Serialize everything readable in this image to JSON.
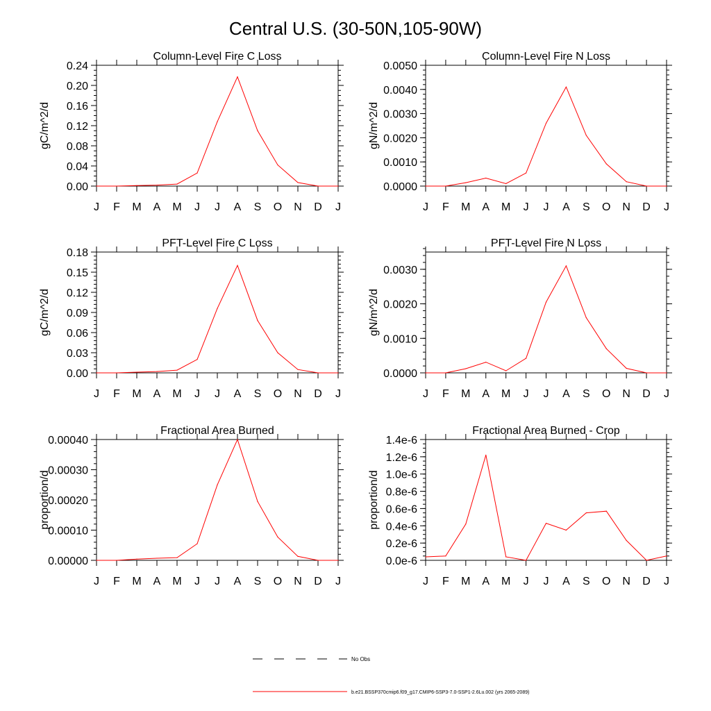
{
  "page_title": "Central U.S. (30-50N,105-90W)",
  "month_labels": [
    "J",
    "F",
    "M",
    "A",
    "M",
    "J",
    "J",
    "A",
    "S",
    "O",
    "N",
    "D",
    "J"
  ],
  "legend": {
    "obs_label": "No Obs",
    "model_label": "b.e21.BSSP370cmip6.f09_g17.CMIP6-SSP3-7.0-SSP1-2.6Lu.002 (yrs 2065-2089)",
    "obs_color": "#000000",
    "model_color": "#ff0000"
  },
  "chart_data": [
    {
      "type": "line",
      "title": "Column-Level Fire C Loss",
      "ylabel": "gC/m^2/d",
      "ylim": [
        0,
        0.24
      ],
      "yticks": [
        "0.00",
        "0.04",
        "0.08",
        "0.12",
        "0.16",
        "0.20",
        "0.24"
      ],
      "yminor_step": 0.01,
      "series": [
        {
          "values": [
            0.0,
            0.0,
            0.001,
            0.002,
            0.004,
            0.026,
            0.128,
            0.217,
            0.11,
            0.042,
            0.007,
            0.0,
            0.0
          ]
        }
      ]
    },
    {
      "type": "line",
      "title": "Column-Level Fire N Loss",
      "ylabel": "gN/m^2/d",
      "ylim": [
        0,
        0.005
      ],
      "yticks": [
        "0.0000",
        "0.0010",
        "0.0020",
        "0.0030",
        "0.0040",
        "0.0050"
      ],
      "yminor_step": 0.0002,
      "series": [
        {
          "values": [
            0.0,
            0.0,
            0.00014,
            0.00033,
            0.0001,
            0.00054,
            0.0026,
            0.0041,
            0.0021,
            0.00092,
            0.00018,
            0.0,
            0.0
          ]
        }
      ]
    },
    {
      "type": "line",
      "title": "PFT-Level Fire C Loss",
      "ylabel": "gC/m^2/d",
      "ylim": [
        0,
        0.18
      ],
      "yticks": [
        "0.00",
        "0.03",
        "0.06",
        "0.09",
        "0.12",
        "0.15",
        "0.18"
      ],
      "yminor_step": 0.006,
      "series": [
        {
          "values": [
            0.0,
            0.0,
            0.001,
            0.002,
            0.004,
            0.02,
            0.096,
            0.16,
            0.078,
            0.03,
            0.005,
            0.0,
            0.0
          ]
        }
      ]
    },
    {
      "type": "line",
      "title": "PFT-Level Fire N Loss",
      "ylabel": "gN/m^2/d",
      "ylim": [
        0,
        0.0035
      ],
      "yticks": [
        "0.0000",
        "0.0010",
        "0.0020",
        "0.0030"
      ],
      "yminor_step": 0.0002,
      "series": [
        {
          "values": [
            0.0,
            0.0,
            0.00012,
            0.00031,
            6e-05,
            0.00042,
            0.00205,
            0.0031,
            0.0016,
            0.0007,
            0.00013,
            0.0,
            0.0
          ]
        }
      ]
    },
    {
      "type": "line",
      "title": "Fractional Area Burned",
      "ylabel": "proportion/d",
      "ylim": [
        0,
        0.0004
      ],
      "yticks": [
        "0.00000",
        "0.00010",
        "0.00020",
        "0.00030",
        "0.00040"
      ],
      "yminor_step": 2e-05,
      "series": [
        {
          "values": [
            0.0,
            0.0,
            4e-06,
            7e-06,
            9e-06,
            5.5e-05,
            0.00025,
            0.0004,
            0.000195,
            7.7e-05,
            1.3e-05,
            0.0,
            0.0
          ]
        }
      ]
    },
    {
      "type": "line",
      "title": "Fractional Area Burned - Crop",
      "ylabel": "proportion/d",
      "ylim": [
        0,
        1.4e-06
      ],
      "yticks": [
        "0.0e-6",
        "0.2e-6",
        "0.4e-6",
        "0.6e-6",
        "0.8e-6",
        "1.0e-6",
        "1.2e-6",
        "1.4e-6"
      ],
      "yminor_step": 5e-08,
      "series": [
        {
          "values": [
            4e-08,
            5e-08,
            4.2e-07,
            1.22e-06,
            4e-08,
            0.0,
            4.3e-07,
            3.5e-07,
            5.5e-07,
            5.7e-07,
            2.3e-07,
            0.0,
            5e-08
          ]
        }
      ]
    }
  ]
}
